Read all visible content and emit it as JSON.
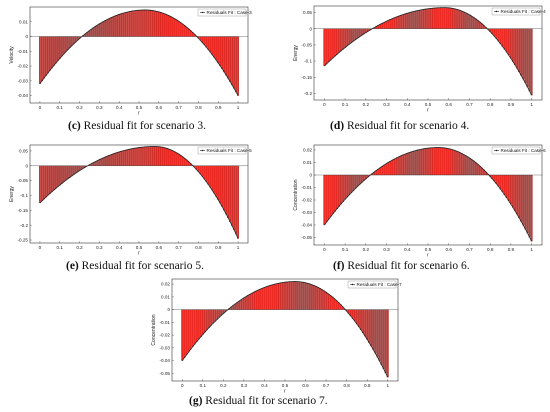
{
  "figure_captions": [
    {
      "letter": "(c)",
      "text": " Residual fit for scenario 3."
    },
    {
      "letter": "(d)",
      "text": " Residual fit for scenario 4."
    },
    {
      "letter": "(e)",
      "text": " Residual fit for scenario 5."
    },
    {
      "letter": "(f)",
      "text": " Residual fit for scenario 6."
    },
    {
      "letter": "(g)",
      "text": " Residual fit for scenario 7."
    }
  ],
  "colors": {
    "bar": "#ee2a24",
    "bar_edge": "#222222",
    "curve": "#222222",
    "axis": "#333333"
  },
  "chart_data": [
    {
      "type": "bar",
      "title": "",
      "xlabel": "r",
      "ylabel": "Velocity",
      "legend": "Residuals Fit : Case-3",
      "legend_position": "top-right",
      "xlim": [
        -0.05,
        1.05
      ],
      "ylim": [
        -0.045,
        0.02
      ],
      "xticks": [
        "0",
        "0.1",
        "0.2",
        "0.3",
        "0.4",
        "0.5",
        "0.6",
        "0.7",
        "0.8",
        "0.9",
        "1"
      ],
      "yticks": [
        0.01,
        0,
        -0.01,
        -0.02,
        -0.03,
        -0.04
      ],
      "ytick_labels": [
        "0.01",
        "0",
        "-0.01",
        "-0.02",
        "-0.03",
        "-0.04"
      ],
      "curve": {
        "left_value": -0.032,
        "right_value": -0.04,
        "peak_x": 0.53,
        "peak_value": 0.018
      },
      "grid": false
    },
    {
      "type": "bar",
      "title": "",
      "xlabel": "r",
      "ylabel": "Energy",
      "legend": "Residuals Fit : Case-4",
      "legend_position": "top-right",
      "xlim": [
        -0.05,
        1.05
      ],
      "ylim": [
        -0.22,
        0.07
      ],
      "xticks": [
        "0",
        "0.1",
        "0.2",
        "0.3",
        "0.4",
        "0.5",
        "0.6",
        "0.7",
        "0.8",
        "0.9",
        "1"
      ],
      "yticks": [
        0.05,
        0,
        -0.05,
        -0.1,
        -0.15,
        -0.2
      ],
      "ytick_labels": [
        "0.05",
        "0",
        "-0.05",
        "-0.1",
        "-0.15",
        "-0.2"
      ],
      "curve": {
        "left_value": -0.115,
        "right_value": -0.205,
        "peak_x": 0.58,
        "peak_value": 0.065
      },
      "grid": false
    },
    {
      "type": "bar",
      "title": "",
      "xlabel": "r",
      "ylabel": "Energy",
      "legend": "Residuals Fit : Case-5",
      "legend_position": "top-right",
      "xlim": [
        -0.05,
        1.05
      ],
      "ylim": [
        -0.26,
        0.07
      ],
      "xticks": [
        "0",
        "0.1",
        "0.2",
        "0.3",
        "0.4",
        "0.5",
        "0.6",
        "0.7",
        "0.8",
        "0.9",
        "1"
      ],
      "yticks": [
        0.05,
        0,
        -0.05,
        -0.1,
        -0.15,
        -0.2,
        -0.25
      ],
      "ytick_labels": [
        "0.05",
        "0",
        "-0.05",
        "-0.1",
        "-0.15",
        "-0.2",
        "-0.25"
      ],
      "curve": {
        "left_value": -0.125,
        "right_value": -0.245,
        "peak_x": 0.58,
        "peak_value": 0.065
      },
      "grid": false
    },
    {
      "type": "bar",
      "title": "",
      "xlabel": "r",
      "ylabel": "Concentration",
      "legend": "Residuals Fit : Case-6",
      "legend_position": "top-right",
      "xlim": [
        -0.05,
        1.05
      ],
      "ylim": [
        -0.056,
        0.024
      ],
      "xticks": [
        "0",
        "0.1",
        "0.2",
        "0.3",
        "0.4",
        "0.5",
        "0.6",
        "0.7",
        "0.8",
        "0.9",
        "1"
      ],
      "yticks": [
        0.02,
        0.01,
        0,
        -0.01,
        -0.02,
        -0.03,
        -0.04,
        -0.05
      ],
      "ytick_labels": [
        "0.02",
        "0.01",
        "0",
        "-0.01",
        "-0.02",
        "-0.03",
        "-0.04",
        "-0.05"
      ],
      "curve": {
        "left_value": -0.04,
        "right_value": -0.053,
        "peak_x": 0.55,
        "peak_value": 0.022
      },
      "grid": false
    },
    {
      "type": "bar",
      "title": "",
      "xlabel": "r",
      "ylabel": "Concentration",
      "legend": "Residuals Fit : Case-7",
      "legend_position": "top-right",
      "xlim": [
        -0.05,
        1.05
      ],
      "ylim": [
        -0.056,
        0.024
      ],
      "xticks": [
        "0",
        "0.1",
        "0.2",
        "0.3",
        "0.4",
        "0.5",
        "0.6",
        "0.7",
        "0.8",
        "0.9",
        "1"
      ],
      "yticks": [
        0.02,
        0.01,
        0,
        -0.01,
        -0.02,
        -0.03,
        -0.04,
        -0.05
      ],
      "ytick_labels": [
        "0.02",
        "0.01",
        "0",
        "-0.01",
        "-0.02",
        "-0.03",
        "-0.04",
        "-0.05"
      ],
      "curve": {
        "left_value": -0.04,
        "right_value": -0.053,
        "peak_x": 0.55,
        "peak_value": 0.022
      },
      "grid": false
    }
  ]
}
